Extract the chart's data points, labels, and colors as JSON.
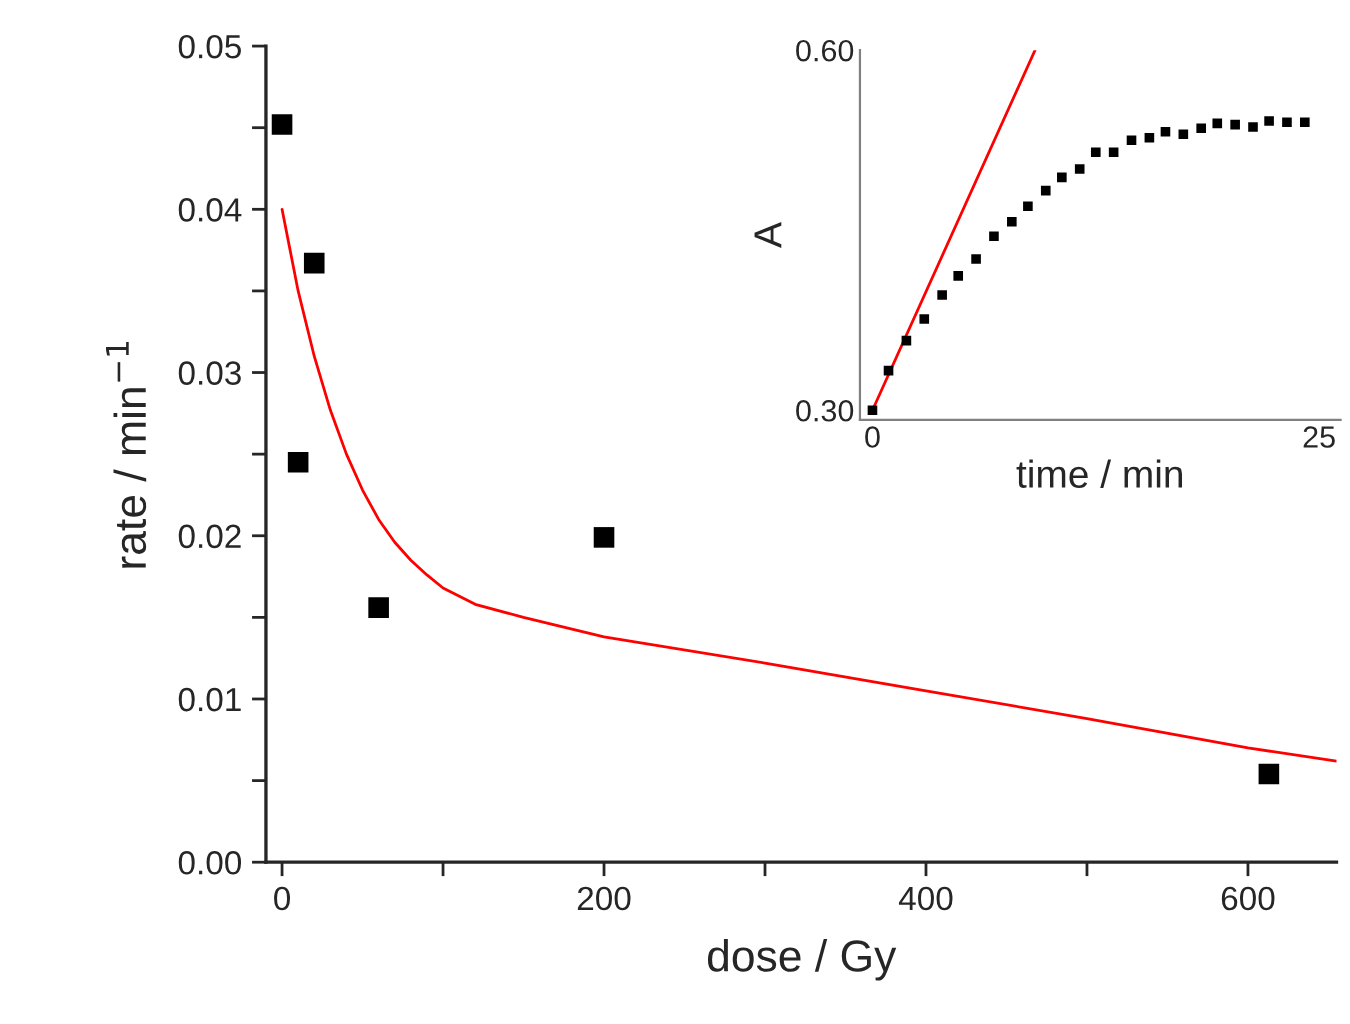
{
  "chart_data": [
    {
      "type": "scatter",
      "xlabel": "dose / Gy",
      "ylabel": "rate / min$^{−1}$",
      "grid": false,
      "legend": false,
      "xlim": [
        -10,
        655
      ],
      "xticks": [
        0,
        {
          "value": 100,
          "label": null
        },
        200,
        {
          "value": 300,
          "label": null
        },
        400,
        {
          "value": 500,
          "label": null
        },
        600
      ],
      "ylim": [
        0,
        0.05
      ],
      "yticks": [
        {
          "value": 0.0,
          "label": "0.00"
        },
        {
          "value": 0.005,
          "label": null
        },
        {
          "value": 0.01,
          "label": "0.01"
        },
        {
          "value": 0.015,
          "label": null
        },
        {
          "value": 0.02,
          "label": "0.02"
        },
        {
          "value": 0.025,
          "label": null
        },
        {
          "value": 0.03,
          "label": "0.03"
        },
        {
          "value": 0.035,
          "label": null
        },
        {
          "value": 0.04,
          "label": "0.04"
        },
        {
          "value": 0.045,
          "label": null
        },
        {
          "value": 0.05,
          "label": "0.05"
        }
      ],
      "series": [
        {
          "marker": "square",
          "color": "#000000",
          "x": [
            0,
            10,
            20,
            60,
            200,
            613
          ],
          "values": [
            0.0452,
            0.0245,
            0.0367,
            0.0156,
            0.0199,
            0.0054
          ]
        },
        {
          "type": "line",
          "marker": "none",
          "color": "#ff0000",
          "x": [
            0,
            5,
            10,
            15,
            20,
            30,
            40,
            50,
            60,
            70,
            80,
            90,
            100,
            120,
            150,
            200,
            300,
            400,
            500,
            600,
            655
          ],
          "values": [
            0.04,
            0.0375,
            0.035,
            0.033,
            0.031,
            0.0277,
            0.025,
            0.0228,
            0.021,
            0.0196,
            0.0185,
            0.0176,
            0.0168,
            0.0158,
            0.015,
            0.0138,
            0.0122,
            0.0105,
            0.0088,
            0.007,
            0.0062
          ]
        }
      ]
    },
    {
      "type": "scatter",
      "xlabel": "time / min",
      "ylabel": "A",
      "grid": false,
      "legend": false,
      "xlim": [
        -0.7,
        26.2
      ],
      "xticks": [
        0,
        25
      ],
      "ylim": [
        0.292,
        0.6
      ],
      "yticks": [
        {
          "value": 0.3,
          "label": "0.30"
        },
        {
          "value": 0.6,
          "label": "0.60"
        }
      ],
      "series": [
        {
          "marker": "square",
          "color": "#000000",
          "x": [
            0,
            0.9,
            1.9,
            2.9,
            3.9,
            4.8,
            5.8,
            6.8,
            7.8,
            8.7,
            9.7,
            10.6,
            11.6,
            12.5,
            13.5,
            14.5,
            15.5,
            16.4,
            17.4,
            18.4,
            19.3,
            20.3,
            21.3,
            22.2,
            23.2,
            24.2
          ],
          "values": [
            0.3,
            0.333,
            0.358,
            0.376,
            0.396,
            0.412,
            0.426,
            0.445,
            0.457,
            0.47,
            0.483,
            0.494,
            0.501,
            0.515,
            0.515,
            0.525,
            0.527,
            0.532,
            0.53,
            0.535,
            0.539,
            0.538,
            0.536,
            0.541,
            0.54,
            0.54
          ]
        },
        {
          "type": "line",
          "marker": "none",
          "color": "#ff0000",
          "x": [
            0,
            9.1
          ],
          "values": [
            0.3,
            0.6
          ]
        }
      ]
    }
  ]
}
